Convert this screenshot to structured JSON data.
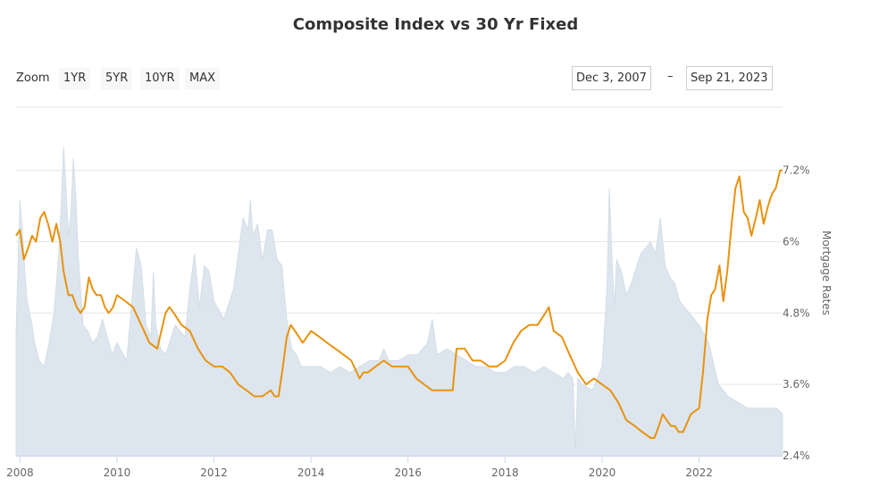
{
  "chart_data": {
    "type": "line",
    "title": "Composite Index vs 30 Yr Fixed",
    "ylabel": "Mortgage Rates",
    "ylim": [
      2.4,
      7.6
    ],
    "yticks": [
      "7.2%",
      "6%",
      "4.8%",
      "3.6%",
      "2.4%"
    ],
    "ytick_values": [
      7.2,
      6.0,
      4.8,
      3.6,
      2.4
    ],
    "xlim": [
      2007.92,
      2023.72
    ],
    "xticks": [
      "2008",
      "2010",
      "2012",
      "2014",
      "2016",
      "2018",
      "2020",
      "2022"
    ],
    "xtick_values": [
      2008,
      2010,
      2012,
      2014,
      2016,
      2018,
      2020,
      2022
    ],
    "grid": true,
    "series": [
      {
        "type": "area",
        "color": "#dde6ee",
        "x": [
          2007.92,
          2008.0,
          2008.05,
          2008.1,
          2008.15,
          2008.2,
          2008.25,
          2008.3,
          2008.4,
          2008.5,
          2008.6,
          2008.7,
          2008.8,
          2008.85,
          2008.9,
          2008.95,
          2009.0,
          2009.05,
          2009.1,
          2009.15,
          2009.2,
          2009.25,
          2009.3,
          2009.4,
          2009.5,
          2009.6,
          2009.7,
          2009.8,
          2009.9,
          2010.0,
          2010.2,
          2010.4,
          2010.5,
          2010.6,
          2010.7,
          2010.75,
          2010.8,
          2010.9,
          2011.0,
          2011.2,
          2011.4,
          2011.5,
          2011.6,
          2011.7,
          2011.8,
          2011.9,
          2012.0,
          2012.2,
          2012.4,
          2012.5,
          2012.55,
          2012.6,
          2012.7,
          2012.75,
          2012.8,
          2012.9,
          2013.0,
          2013.1,
          2013.2,
          2013.3,
          2013.4,
          2013.5,
          2013.6,
          2013.7,
          2013.8,
          2014.0,
          2014.2,
          2014.4,
          2014.6,
          2014.8,
          2015.0,
          2015.2,
          2015.4,
          2015.5,
          2015.6,
          2015.8,
          2016.0,
          2016.2,
          2016.4,
          2016.5,
          2016.6,
          2016.8,
          2017.0,
          2017.2,
          2017.4,
          2017.6,
          2017.8,
          2018.0,
          2018.2,
          2018.4,
          2018.6,
          2018.8,
          2019.0,
          2019.2,
          2019.3,
          2019.4,
          2019.45,
          2019.5,
          2019.6,
          2019.8,
          2020.0,
          2020.1,
          2020.15,
          2020.2,
          2020.25,
          2020.3,
          2020.4,
          2020.5,
          2020.6,
          2020.8,
          2021.0,
          2021.1,
          2021.2,
          2021.3,
          2021.4,
          2021.5,
          2021.6,
          2021.8,
          2022.0,
          2022.2,
          2022.4,
          2022.6,
          2022.8,
          2023.0,
          2023.2,
          2023.4,
          2023.6,
          2023.72
        ],
        "values": [
          4.5,
          6.7,
          6.2,
          5.5,
          5.0,
          4.8,
          4.6,
          4.3,
          4.0,
          3.9,
          4.3,
          4.8,
          5.8,
          6.6,
          7.6,
          6.9,
          6.1,
          6.5,
          7.4,
          6.8,
          5.8,
          5.2,
          4.6,
          4.5,
          4.3,
          4.4,
          4.7,
          4.4,
          4.1,
          4.3,
          4.0,
          5.9,
          5.6,
          4.6,
          4.4,
          5.5,
          4.6,
          4.2,
          4.1,
          4.6,
          4.4,
          5.2,
          5.8,
          4.9,
          5.6,
          5.5,
          5.0,
          4.7,
          5.2,
          5.8,
          6.1,
          6.4,
          6.2,
          6.7,
          6.1,
          6.3,
          5.7,
          6.2,
          6.2,
          5.7,
          5.6,
          4.7,
          4.2,
          4.1,
          3.9,
          3.9,
          3.9,
          3.8,
          3.9,
          3.8,
          3.9,
          4.0,
          4.0,
          4.2,
          4.0,
          4.0,
          4.1,
          4.1,
          4.3,
          4.7,
          4.1,
          4.2,
          4.1,
          4.0,
          3.9,
          3.9,
          3.8,
          3.8,
          3.9,
          3.9,
          3.8,
          3.9,
          3.8,
          3.7,
          3.8,
          3.7,
          2.5,
          3.7,
          3.6,
          3.5,
          3.9,
          5.2,
          6.9,
          5.8,
          4.9,
          5.7,
          5.5,
          5.1,
          5.3,
          5.8,
          6.0,
          5.8,
          6.4,
          5.6,
          5.4,
          5.3,
          5.0,
          4.8,
          4.6,
          4.3,
          3.6,
          3.4,
          3.3,
          3.2,
          3.2,
          3.2,
          3.2,
          3.1
        ]
      },
      {
        "type": "line",
        "color": "#e8920f",
        "x": [
          2007.92,
          2008.0,
          2008.08,
          2008.17,
          2008.25,
          2008.33,
          2008.42,
          2008.5,
          2008.58,
          2008.67,
          2008.75,
          2008.83,
          2008.9,
          2009.0,
          2009.08,
          2009.17,
          2009.25,
          2009.33,
          2009.42,
          2009.5,
          2009.58,
          2009.67,
          2009.75,
          2009.83,
          2009.92,
          2010.0,
          2010.17,
          2010.33,
          2010.5,
          2010.67,
          2010.83,
          2011.0,
          2011.08,
          2011.17,
          2011.33,
          2011.5,
          2011.67,
          2011.83,
          2012.0,
          2012.17,
          2012.33,
          2012.5,
          2012.67,
          2012.83,
          2013.0,
          2013.17,
          2013.25,
          2013.33,
          2013.42,
          2013.5,
          2013.58,
          2013.67,
          2013.83,
          2014.0,
          2014.17,
          2014.33,
          2014.5,
          2014.67,
          2014.83,
          2015.0,
          2015.08,
          2015.17,
          2015.33,
          2015.5,
          2015.67,
          2015.83,
          2016.0,
          2016.17,
          2016.33,
          2016.5,
          2016.67,
          2016.83,
          2016.92,
          2017.0,
          2017.17,
          2017.33,
          2017.5,
          2017.67,
          2017.83,
          2018.0,
          2018.17,
          2018.33,
          2018.5,
          2018.67,
          2018.83,
          2018.9,
          2019.0,
          2019.17,
          2019.33,
          2019.5,
          2019.67,
          2019.83,
          2020.0,
          2020.17,
          2020.33,
          2020.5,
          2020.67,
          2020.83,
          2021.0,
          2021.08,
          2021.17,
          2021.25,
          2021.33,
          2021.42,
          2021.5,
          2021.58,
          2021.67,
          2021.83,
          2022.0,
          2022.08,
          2022.17,
          2022.25,
          2022.33,
          2022.42,
          2022.5,
          2022.58,
          2022.67,
          2022.75,
          2022.83,
          2022.92,
          2023.0,
          2023.08,
          2023.17,
          2023.25,
          2023.33,
          2023.42,
          2023.5,
          2023.58,
          2023.67,
          2023.72
        ],
        "values": [
          6.1,
          6.2,
          5.7,
          5.9,
          6.1,
          6.0,
          6.4,
          6.5,
          6.3,
          6.0,
          6.3,
          6.0,
          5.5,
          5.1,
          5.1,
          4.9,
          4.8,
          4.9,
          5.4,
          5.2,
          5.1,
          5.1,
          4.9,
          4.8,
          4.9,
          5.1,
          5.0,
          4.9,
          4.6,
          4.3,
          4.2,
          4.8,
          4.9,
          4.8,
          4.6,
          4.5,
          4.2,
          4.0,
          3.9,
          3.9,
          3.8,
          3.6,
          3.5,
          3.4,
          3.4,
          3.5,
          3.4,
          3.4,
          3.9,
          4.4,
          4.6,
          4.5,
          4.3,
          4.5,
          4.4,
          4.3,
          4.2,
          4.1,
          4.0,
          3.7,
          3.8,
          3.8,
          3.9,
          4.0,
          3.9,
          3.9,
          3.9,
          3.7,
          3.6,
          3.5,
          3.5,
          3.5,
          3.5,
          4.2,
          4.2,
          4.0,
          4.0,
          3.9,
          3.9,
          4.0,
          4.3,
          4.5,
          4.6,
          4.6,
          4.8,
          4.9,
          4.5,
          4.4,
          4.1,
          3.8,
          3.6,
          3.7,
          3.6,
          3.5,
          3.3,
          3.0,
          2.9,
          2.8,
          2.7,
          2.7,
          2.9,
          3.1,
          3.0,
          2.9,
          2.9,
          2.8,
          2.8,
          3.1,
          3.2,
          3.8,
          4.7,
          5.1,
          5.2,
          5.6,
          5.0,
          5.5,
          6.3,
          6.9,
          7.1,
          6.5,
          6.4,
          6.1,
          6.4,
          6.7,
          6.3,
          6.6,
          6.8,
          6.9,
          7.2,
          7.2
        ]
      }
    ]
  },
  "ui": {
    "zoom_label": "Zoom",
    "zoom_buttons": [
      "1YR",
      "5YR",
      "10YR",
      "MAX"
    ],
    "range_from": "Dec 3, 2007",
    "range_dash": "–",
    "range_to": "Sep 21, 2023"
  }
}
